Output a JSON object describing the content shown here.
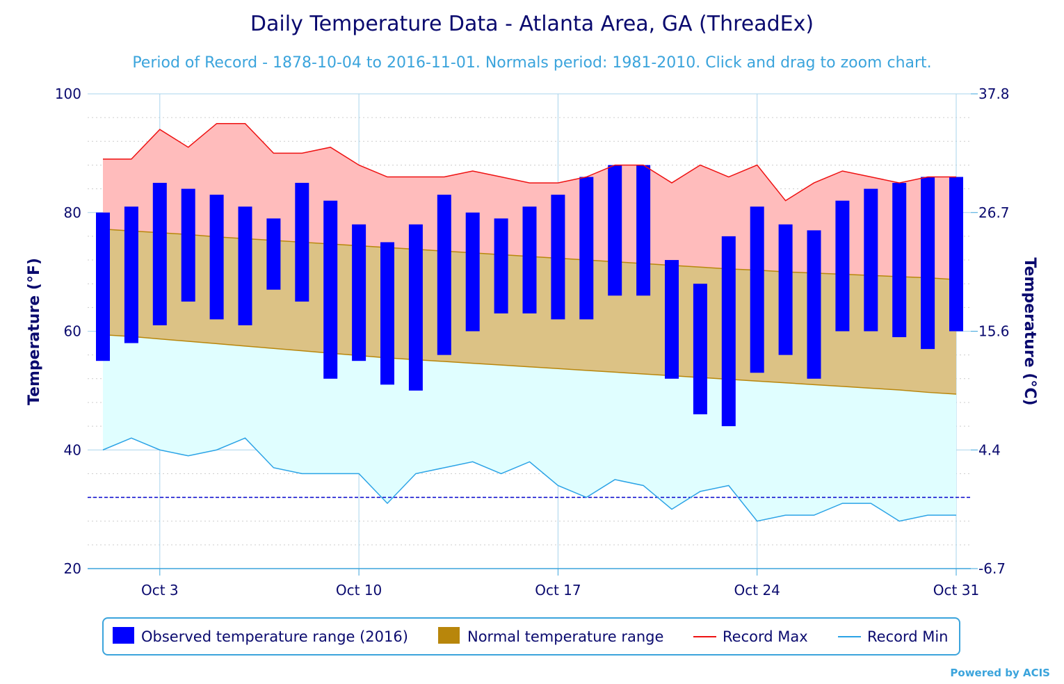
{
  "chart_data": {
    "type": "bar",
    "title": "Daily Temperature Data - Atlanta Area, GA (ThreadEx)",
    "subtitle": "Period of Record - 1878-10-04 to 2016-11-01. Normals period: 1981-2010. Click and drag to zoom chart.",
    "ylabel": "Temperature (°F)",
    "y2label": "Temperature (°C)",
    "ylim": [
      20,
      100
    ],
    "yticks": [
      20,
      40,
      60,
      80,
      100
    ],
    "y2ticks": [
      "-6.7",
      "4.4",
      "15.6",
      "26.7",
      "37.8"
    ],
    "x": [
      1,
      2,
      3,
      4,
      5,
      6,
      7,
      8,
      9,
      10,
      11,
      12,
      13,
      14,
      15,
      16,
      17,
      18,
      19,
      20,
      21,
      22,
      23,
      24,
      25,
      26,
      27,
      28,
      29,
      30,
      31
    ],
    "xticks": [
      {
        "day": 3,
        "label": "Oct 3"
      },
      {
        "day": 10,
        "label": "Oct 10"
      },
      {
        "day": 17,
        "label": "Oct 17"
      },
      {
        "day": 24,
        "label": "Oct 24"
      },
      {
        "day": 31,
        "label": "Oct 31"
      }
    ],
    "freezing_line": 32,
    "grid": true,
    "legend_position": "bottom",
    "series": [
      {
        "name": "Observed temperature range (2016)",
        "type": "range-bar",
        "color": "#0000ff",
        "low": [
          55,
          58,
          61,
          65,
          62,
          61,
          67,
          65,
          52,
          55,
          51,
          50,
          56,
          60,
          63,
          63,
          62,
          62,
          66,
          66,
          52,
          46,
          44,
          53,
          56,
          52,
          60,
          60,
          59,
          57,
          60
        ],
        "high": [
          80,
          81,
          85,
          84,
          83,
          81,
          79,
          85,
          82,
          78,
          75,
          78,
          83,
          80,
          79,
          81,
          83,
          86,
          88,
          88,
          72,
          68,
          76,
          81,
          78,
          77,
          82,
          84,
          85,
          86,
          86
        ]
      },
      {
        "name": "Normal temperature range",
        "type": "range-area",
        "color": "#b8860b",
        "low": [
          59.4,
          59.1,
          58.7,
          58.3,
          57.9,
          57.5,
          57.1,
          56.7,
          56.3,
          55.9,
          55.5,
          55.2,
          54.9,
          54.6,
          54.3,
          54.0,
          53.7,
          53.4,
          53.1,
          52.8,
          52.5,
          52.2,
          51.9,
          51.6,
          51.3,
          51.0,
          50.7,
          50.4,
          50.1,
          49.7,
          49.4
        ],
        "high": [
          77.2,
          76.9,
          76.6,
          76.3,
          75.9,
          75.6,
          75.3,
          75.0,
          74.7,
          74.4,
          74.1,
          73.8,
          73.5,
          73.2,
          72.9,
          72.6,
          72.3,
          72.0,
          71.7,
          71.4,
          71.1,
          70.8,
          70.5,
          70.3,
          70.0,
          69.8,
          69.6,
          69.4,
          69.2,
          69.0,
          68.7
        ]
      },
      {
        "name": "Record Max",
        "type": "line",
        "color": "#ee1111",
        "values": [
          89,
          89,
          94,
          91,
          95,
          95,
          90,
          90,
          91,
          88,
          86,
          86,
          86,
          87,
          86,
          85,
          85,
          86,
          88,
          88,
          85,
          88,
          86,
          88,
          82,
          85,
          87,
          86,
          85,
          86,
          86
        ]
      },
      {
        "name": "Record Min",
        "type": "line",
        "color": "#2ba3e6",
        "values": [
          40,
          42,
          40,
          39,
          40,
          42,
          37,
          36,
          36,
          36,
          31,
          36,
          37,
          38,
          36,
          38,
          34,
          32,
          35,
          34,
          30,
          33,
          34,
          28,
          29,
          29,
          31,
          31,
          28,
          29,
          29
        ]
      }
    ]
  },
  "credit": "Powered by ACIS"
}
